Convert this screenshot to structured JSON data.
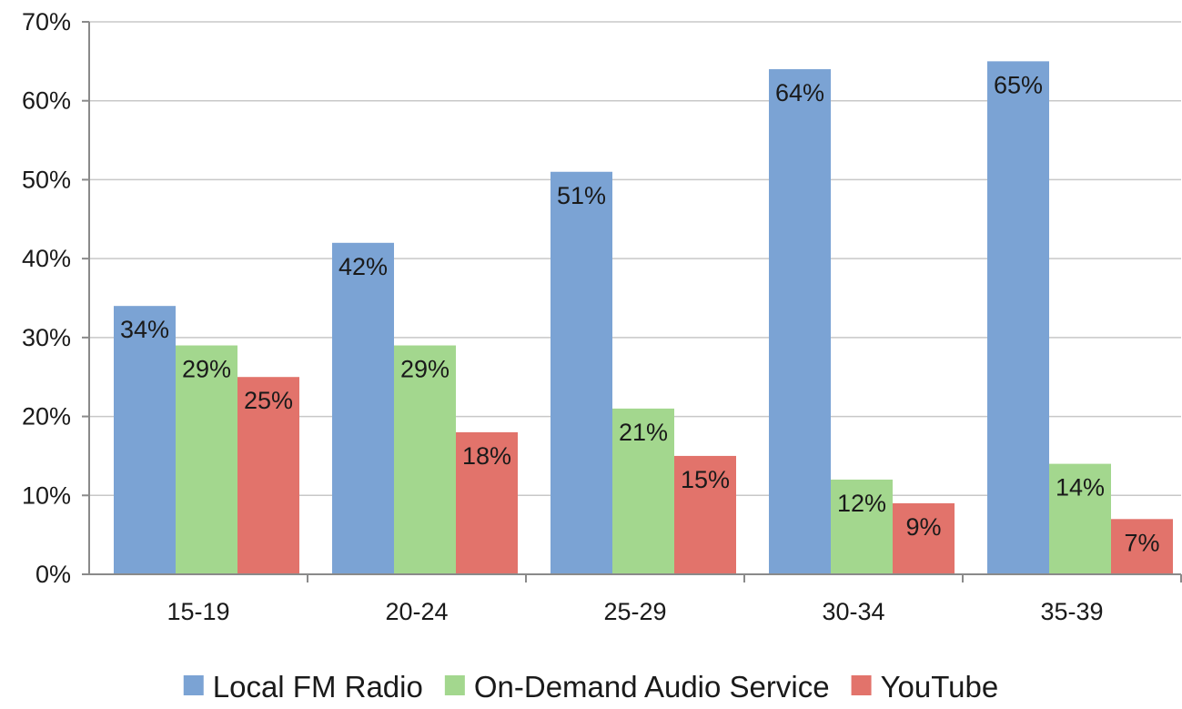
{
  "chart_data": {
    "type": "bar",
    "categories": [
      "15-19",
      "20-24",
      "25-29",
      "30-34",
      "35-39"
    ],
    "series": [
      {
        "name": "Local FM Radio",
        "values": [
          34,
          42,
          51,
          64,
          65
        ],
        "labels": [
          "34%",
          "42%",
          "51%",
          "64%",
          "65%"
        ],
        "color": "#7ba3d4"
      },
      {
        "name": "On-Demand Audio Service",
        "values": [
          29,
          29,
          21,
          12,
          14
        ],
        "labels": [
          "29%",
          "29%",
          "21%",
          "12%",
          "14%"
        ],
        "color": "#a3d78e"
      },
      {
        "name": "YouTube",
        "values": [
          25,
          18,
          15,
          9,
          7
        ],
        "labels": [
          "25%",
          "18%",
          "15%",
          "9%",
          "7%"
        ],
        "color": "#e2736b"
      }
    ],
    "yticks": [
      "0%",
      "10%",
      "20%",
      "30%",
      "40%",
      "50%",
      "60%",
      "70%"
    ],
    "ylim": [
      0,
      70
    ],
    "grid": true,
    "legend_position": "bottom",
    "title": "",
    "xlabel": "",
    "ylabel": ""
  }
}
